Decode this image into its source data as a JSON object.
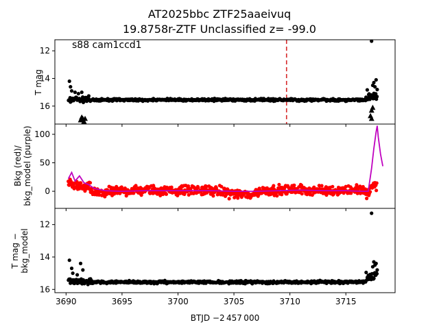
{
  "figure": {
    "title_line1": "AT2025bbc  ZTF25aaeivuq",
    "title_line2": "19.8758r-ZTF Unclassified z= -99.0",
    "annotation": "s88 cam1ccd1",
    "xlabel": "BTJD −2 457 000"
  },
  "chart_data": [
    {
      "type": "scatter",
      "panel": "top",
      "ylabel": "T mag",
      "inverted_y": true,
      "xlim": [
        3689.0,
        3719.4
      ],
      "ylim": [
        17.3,
        11.2
      ],
      "x_ticks": [
        3690,
        3695,
        3700,
        3705,
        3710,
        3715
      ],
      "y_ticks": [
        12,
        14,
        16
      ],
      "y_tick_labels": [
        "12",
        "14",
        "16"
      ],
      "reference_line": {
        "x": 3709.7,
        "color": "#d62728",
        "style": "dashed"
      },
      "series": [
        {
          "marker": "circle",
          "color": "#000000",
          "segments": [
            {
              "x_range": [
                3690.2,
                3692.3
              ],
              "y_base": 15.5,
              "scatter": 0.18,
              "outliers": [
                [
                  3690.3,
                  14.2
                ],
                [
                  3690.4,
                  14.6
                ],
                [
                  3690.5,
                  14.9
                ],
                [
                  3690.8,
                  15.0
                ],
                [
                  3691.1,
                  15.1
                ],
                [
                  3691.4,
                  15.0
                ]
              ]
            },
            {
              "x_range": [
                3692.3,
                3716.8
              ],
              "y_base": 15.55,
              "scatter": 0.07
            },
            {
              "x_range": [
                3716.8,
                3717.8
              ],
              "y_base": 15.2,
              "scatter": 0.35,
              "outliers": [
                [
                  3717.3,
                  11.3
                ],
                [
                  3717.4,
                  14.5
                ],
                [
                  3717.5,
                  14.3
                ],
                [
                  3717.6,
                  14.6
                ],
                [
                  3717.7,
                  14.1
                ],
                [
                  3717.8,
                  14.8
                ]
              ]
            }
          ]
        },
        {
          "name": "",
          "marker": "triangle",
          "color": "#000000",
          "points": [
            [
              3691.3,
              17.0
            ],
            [
              3691.4,
              16.8
            ],
            [
              3691.5,
              16.9
            ],
            [
              3691.6,
              17.1
            ],
            [
              3691.7,
              16.9
            ],
            [
              3717.3,
              16.3
            ],
            [
              3717.4,
              16.1
            ],
            [
              3717.2,
              16.7
            ],
            [
              3717.3,
              16.9
            ]
          ]
        }
      ]
    },
    {
      "type": "scatter",
      "panel": "middle",
      "ylabel_line1": "Bkg (red)/",
      "ylabel_line2": "bkg_model (purple)",
      "xlim": [
        3689.0,
        3719.4
      ],
      "ylim": [
        -30,
        118
      ],
      "x_ticks": [
        3690,
        3695,
        3700,
        3705,
        3710,
        3715
      ],
      "y_ticks": [
        0,
        50,
        100
      ],
      "y_tick_labels": [
        "0",
        "50",
        "100"
      ],
      "series": [
        {
          "name": "Bkg",
          "color": "#ff0000",
          "marker": "circle",
          "profile": [
            [
              3690.2,
              15
            ],
            [
              3690.6,
              8
            ],
            [
              3691.0,
              12
            ],
            [
              3691.5,
              5
            ],
            [
              3692.0,
              8
            ],
            [
              3692.5,
              -3
            ],
            [
              3693.5,
              -2
            ],
            [
              3695.0,
              1
            ],
            [
              3697.0,
              2
            ],
            [
              3699.0,
              1
            ],
            [
              3701.0,
              2
            ],
            [
              3703.0,
              1
            ],
            [
              3704.5,
              -2
            ],
            [
              3705.5,
              -5
            ],
            [
              3706.5,
              -6
            ],
            [
              3707.5,
              1
            ],
            [
              3709.0,
              2
            ],
            [
              3711.0,
              3
            ],
            [
              3713.0,
              1
            ],
            [
              3715.0,
              2
            ],
            [
              3716.5,
              3
            ],
            [
              3716.9,
              -8
            ],
            [
              3717.4,
              12
            ],
            [
              3717.8,
              5
            ]
          ],
          "spread": 7
        },
        {
          "name": "bkg_model",
          "color": "#bf00bf",
          "marker": "line",
          "points": [
            [
              3690.2,
              22
            ],
            [
              3690.5,
              33
            ],
            [
              3690.8,
              18
            ],
            [
              3691.2,
              27
            ],
            [
              3691.6,
              15
            ],
            [
              3692.0,
              12
            ],
            [
              3692.5,
              5
            ],
            [
              3693.5,
              1
            ],
            [
              3695.0,
              0
            ],
            [
              3697.0,
              1
            ],
            [
              3699.0,
              1
            ],
            [
              3701.0,
              1
            ],
            [
              3703.0,
              1
            ],
            [
              3705.0,
              0
            ],
            [
              3707.0,
              0
            ],
            [
              3709.0,
              1
            ],
            [
              3711.0,
              2
            ],
            [
              3713.0,
              1
            ],
            [
              3715.0,
              1
            ],
            [
              3716.5,
              0
            ],
            [
              3717.0,
              0
            ],
            [
              3717.3,
              40
            ],
            [
              3717.5,
              75
            ],
            [
              3717.7,
              104
            ],
            [
              3717.8,
              115
            ],
            [
              3717.9,
              95
            ],
            [
              3718.1,
              65
            ],
            [
              3718.3,
              44
            ]
          ]
        }
      ]
    },
    {
      "type": "scatter",
      "panel": "bottom",
      "ylabel_line1": "T mag −",
      "ylabel_line2": "bkg_model",
      "inverted_y": true,
      "xlim": [
        3689.0,
        3719.4
      ],
      "ylim": [
        16.2,
        11.0
      ],
      "x_ticks": [
        3690,
        3695,
        3700,
        3705,
        3710,
        3715
      ],
      "x_tick_labels": [
        "3690",
        "3695",
        "3700",
        "3705",
        "3710",
        "3715"
      ],
      "y_ticks": [
        12,
        14,
        16
      ],
      "y_tick_labels": [
        "12",
        "14",
        "16"
      ],
      "series": [
        {
          "marker": "circle",
          "color": "#000000",
          "segments": [
            {
              "x_range": [
                3690.2,
                3692.3
              ],
              "y_base": 15.5,
              "scatter": 0.2,
              "outliers": [
                [
                  3690.3,
                  14.2
                ],
                [
                  3690.5,
                  14.7
                ],
                [
                  3690.6,
                  15.0
                ],
                [
                  3691.3,
                  14.4
                ],
                [
                  3691.5,
                  14.8
                ],
                [
                  3691.0,
                  15.1
                ]
              ]
            },
            {
              "x_range": [
                3692.3,
                3716.8
              ],
              "y_base": 15.55,
              "scatter": 0.07
            },
            {
              "x_range": [
                3716.8,
                3717.8
              ],
              "y_base": 15.2,
              "scatter": 0.35,
              "outliers": [
                [
                  3717.3,
                  11.3
                ],
                [
                  3717.4,
                  14.6
                ],
                [
                  3717.5,
                  14.3
                ],
                [
                  3717.6,
                  14.5
                ],
                [
                  3717.7,
                  14.4
                ],
                [
                  3717.8,
                  14.8
                ]
              ]
            }
          ]
        }
      ]
    }
  ]
}
